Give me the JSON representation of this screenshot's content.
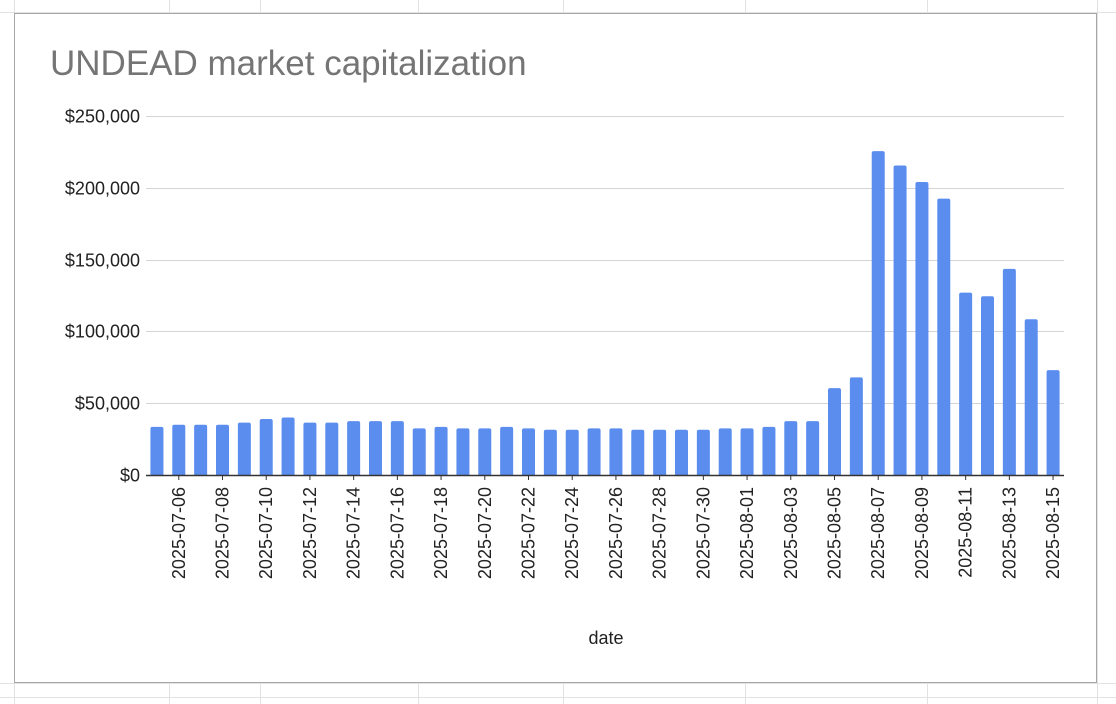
{
  "colors": {
    "bar": "#5b8def",
    "gridline": "#d4d4d4",
    "axis_line": "#333333",
    "title_text": "#757575",
    "sheet_grid": "#e2e2e2"
  },
  "chart_data": {
    "type": "bar",
    "title": "UNDEAD market capitalization",
    "xlabel": "date",
    "ylabel": "",
    "ylim": [
      0,
      250000
    ],
    "y_ticks": [
      {
        "value": 0,
        "label": "$0"
      },
      {
        "value": 50000,
        "label": "$50,000"
      },
      {
        "value": 100000,
        "label": "$100,000"
      },
      {
        "value": 150000,
        "label": "$150,000"
      },
      {
        "value": 200000,
        "label": "$200,000"
      },
      {
        "value": 250000,
        "label": "$250,000"
      }
    ],
    "x_tick_labels": [
      "2025-07-06",
      "2025-07-08",
      "2025-07-10",
      "2025-07-12",
      "2025-07-14",
      "2025-07-16",
      "2025-07-18",
      "2025-07-20",
      "2025-07-22",
      "2025-07-24",
      "2025-07-26",
      "2025-07-28",
      "2025-07-30",
      "2025-08-01",
      "2025-08-03",
      "2025-08-05",
      "2025-08-07",
      "2025-08-09",
      "2025-08-11",
      "2025-08-13",
      "2025-08-15"
    ],
    "grid": true,
    "legend": "none",
    "categories": [
      "2025-07-05",
      "2025-07-06",
      "2025-07-07",
      "2025-07-08",
      "2025-07-09",
      "2025-07-10",
      "2025-07-11",
      "2025-07-12",
      "2025-07-13",
      "2025-07-14",
      "2025-07-15",
      "2025-07-16",
      "2025-07-17",
      "2025-07-18",
      "2025-07-19",
      "2025-07-20",
      "2025-07-21",
      "2025-07-22",
      "2025-07-23",
      "2025-07-24",
      "2025-07-25",
      "2025-07-26",
      "2025-07-27",
      "2025-07-28",
      "2025-07-29",
      "2025-07-30",
      "2025-07-31",
      "2025-08-01",
      "2025-08-02",
      "2025-08-03",
      "2025-08-04",
      "2025-08-05",
      "2025-08-06",
      "2025-08-07",
      "2025-08-08",
      "2025-08-09",
      "2025-08-10",
      "2025-08-11",
      "2025-08-12",
      "2025-08-13",
      "2025-08-14",
      "2025-08-15"
    ],
    "values": [
      33500,
      35000,
      35000,
      35000,
      36500,
      39000,
      40000,
      36500,
      36500,
      37500,
      37500,
      37500,
      32500,
      33500,
      32500,
      32500,
      33500,
      32500,
      31500,
      31500,
      32500,
      32500,
      31500,
      31500,
      31500,
      31500,
      32500,
      32500,
      33500,
      37500,
      37500,
      60500,
      68000,
      225500,
      215500,
      204000,
      192500,
      127000,
      124500,
      143500,
      108500,
      73000
    ]
  }
}
